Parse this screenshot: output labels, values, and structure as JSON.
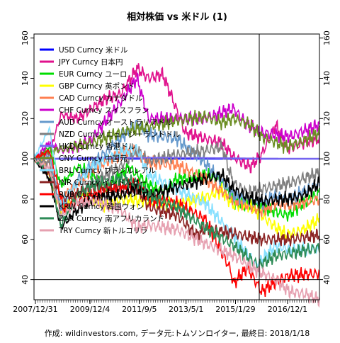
{
  "chart_data": {
    "type": "line",
    "title": "相対株価 vs 米ドル (1)",
    "caption": "作成: wildinvestors.com, データ元:トムソンロイター, 最終日: 2018/1/18",
    "xlabel": "",
    "ylabel": "",
    "x_ticks": [
      "2007/12/31",
      "2009/12/4",
      "2011/9/5",
      "2013/5/1",
      "2015/1/29",
      "2016/12/1"
    ],
    "x_tick_years": [
      2008.0,
      2009.93,
      2011.68,
      2013.33,
      2015.08,
      2016.92
    ],
    "x_range": [
      2007.95,
      2018.05
    ],
    "ylim": [
      30,
      162
    ],
    "y_ticks": [
      40,
      60,
      80,
      100,
      120,
      140,
      160
    ],
    "grid": false,
    "legend_position": "top-left",
    "reference_lines": {
      "horizontal_y": 40,
      "vertical_x": 2015.92
    },
    "series": [
      {
        "name": "USD Curncy 米ドル",
        "color": "#0000ff",
        "points": [
          [
            2007.95,
            100
          ],
          [
            2018.05,
            100
          ]
        ]
      },
      {
        "name": "JPY Curncy 日本円",
        "color": "#e0118c",
        "points": [
          [
            2007.95,
            100
          ],
          [
            2008.5,
            103
          ],
          [
            2008.9,
            122
          ],
          [
            2009.5,
            120
          ],
          [
            2010,
            125
          ],
          [
            2010.5,
            130
          ],
          [
            2011,
            132
          ],
          [
            2011.6,
            145
          ],
          [
            2012,
            140
          ],
          [
            2012.5,
            142
          ],
          [
            2012.9,
            128
          ],
          [
            2013.3,
            113
          ],
          [
            2014,
            110
          ],
          [
            2014.6,
            108
          ],
          [
            2015,
            101
          ],
          [
            2015.6,
            96
          ],
          [
            2016,
            102
          ],
          [
            2016.5,
            117
          ],
          [
            2016.9,
            105
          ],
          [
            2017.5,
            108
          ],
          [
            2018.05,
            110
          ]
        ]
      },
      {
        "name": "EUR Curncy ユーロ",
        "color": "#00dd00",
        "points": [
          [
            2007.95,
            100
          ],
          [
            2008.5,
            106
          ],
          [
            2008.9,
            87
          ],
          [
            2009.5,
            96
          ],
          [
            2010,
            93
          ],
          [
            2010.5,
            85
          ],
          [
            2011,
            92
          ],
          [
            2011.3,
            96
          ],
          [
            2012,
            87
          ],
          [
            2012.5,
            84
          ],
          [
            2013,
            90
          ],
          [
            2014,
            92
          ],
          [
            2014.5,
            90
          ],
          [
            2015,
            79
          ],
          [
            2015.5,
            77
          ],
          [
            2016,
            76
          ],
          [
            2016.9,
            72
          ],
          [
            2017.5,
            78
          ],
          [
            2018.05,
            83
          ]
        ]
      },
      {
        "name": "GBP Curncy 英ポンド",
        "color": "#ffff00",
        "points": [
          [
            2007.95,
            100
          ],
          [
            2008.3,
            99
          ],
          [
            2008.9,
            74
          ],
          [
            2009.5,
            82
          ],
          [
            2010,
            80
          ],
          [
            2010.5,
            77
          ],
          [
            2011,
            80
          ],
          [
            2012,
            79
          ],
          [
            2013,
            77
          ],
          [
            2014,
            81
          ],
          [
            2014.6,
            84
          ],
          [
            2015,
            77
          ],
          [
            2015.6,
            77
          ],
          [
            2016,
            72
          ],
          [
            2016.5,
            66
          ],
          [
            2016.9,
            62
          ],
          [
            2017.5,
            65
          ],
          [
            2018.05,
            70
          ]
        ]
      },
      {
        "name": "CAD Curncy カナダドル",
        "color": "#ff7f50",
        "points": [
          [
            2007.95,
            100
          ],
          [
            2008.5,
            98
          ],
          [
            2008.9,
            80
          ],
          [
            2009.5,
            88
          ],
          [
            2010,
            95
          ],
          [
            2011,
            102
          ],
          [
            2011.5,
            104
          ],
          [
            2012,
            98
          ],
          [
            2013,
            97
          ],
          [
            2014,
            90
          ],
          [
            2015,
            80
          ],
          [
            2016,
            74
          ],
          [
            2016.5,
            78
          ],
          [
            2017,
            77
          ],
          [
            2018.05,
            80
          ]
        ]
      },
      {
        "name": "CHF Curncy スイスフラン",
        "color": "#cc00cc",
        "points": [
          [
            2007.95,
            100
          ],
          [
            2008.5,
            108
          ],
          [
            2008.9,
            104
          ],
          [
            2009.5,
            106
          ],
          [
            2010,
            110
          ],
          [
            2011,
            128
          ],
          [
            2011.6,
            140
          ],
          [
            2012,
            120
          ],
          [
            2013,
            120
          ],
          [
            2014,
            120
          ],
          [
            2015,
            125
          ],
          [
            2015.5,
            117
          ],
          [
            2016,
            113
          ],
          [
            2016.5,
            112
          ],
          [
            2017,
            111
          ],
          [
            2018.05,
            117
          ]
        ]
      },
      {
        "name": "AUD Curncy オーストラリアドル",
        "color": "#6699cc",
        "points": [
          [
            2007.95,
            100
          ],
          [
            2008.5,
            102
          ],
          [
            2008.9,
            75
          ],
          [
            2009.5,
            90
          ],
          [
            2010,
            97
          ],
          [
            2011,
            110
          ],
          [
            2011.6,
            118
          ],
          [
            2012,
            112
          ],
          [
            2013,
            110
          ],
          [
            2014,
            98
          ],
          [
            2015,
            82
          ],
          [
            2016,
            78
          ],
          [
            2016.5,
            82
          ],
          [
            2017,
            80
          ],
          [
            2018.05,
            88
          ]
        ]
      },
      {
        "name": "NZD Curncy ニュージーランドドル",
        "color": "#7f7f7f",
        "points": [
          [
            2007.95,
            100
          ],
          [
            2008.5,
            98
          ],
          [
            2008.9,
            72
          ],
          [
            2009.5,
            82
          ],
          [
            2010,
            88
          ],
          [
            2011,
            96
          ],
          [
            2011.6,
            104
          ],
          [
            2012,
            99
          ],
          [
            2013,
            102
          ],
          [
            2014,
            104
          ],
          [
            2014.6,
            106
          ],
          [
            2015,
            88
          ],
          [
            2015.5,
            83
          ],
          [
            2016,
            85
          ],
          [
            2017,
            88
          ],
          [
            2018.05,
            93
          ]
        ]
      },
      {
        "name": "HKD Curncy 香港ドル",
        "color": "#7b68ee",
        "points": [
          [
            2007.95,
            100
          ],
          [
            2010,
            100.5
          ],
          [
            2013,
            100.6
          ],
          [
            2016,
            100.2
          ],
          [
            2018.05,
            100.1
          ]
        ]
      },
      {
        "name": "CNY Curncy 中国元",
        "color": "#6b8e23",
        "points": [
          [
            2007.95,
            100
          ],
          [
            2008.5,
            104
          ],
          [
            2009,
            105
          ],
          [
            2010,
            108
          ],
          [
            2011,
            113
          ],
          [
            2012,
            116
          ],
          [
            2013,
            119
          ],
          [
            2014,
            121
          ],
          [
            2014.6,
            118
          ],
          [
            2015,
            120
          ],
          [
            2015.6,
            117
          ],
          [
            2016,
            111
          ],
          [
            2016.9,
            106
          ],
          [
            2017.5,
            109
          ],
          [
            2018.05,
            113
          ]
        ]
      },
      {
        "name": "BRL Curncy ブラジルレアル",
        "color": "#87e0ff",
        "points": [
          [
            2007.95,
            100
          ],
          [
            2008.5,
            115
          ],
          [
            2008.9,
            78
          ],
          [
            2009.5,
            88
          ],
          [
            2010,
            96
          ],
          [
            2011,
            103
          ],
          [
            2011.6,
            105
          ],
          [
            2012,
            92
          ],
          [
            2013,
            85
          ],
          [
            2014,
            78
          ],
          [
            2015,
            62
          ],
          [
            2015.8,
            47
          ],
          [
            2016.5,
            57
          ],
          [
            2017,
            55
          ],
          [
            2018.05,
            55
          ]
        ]
      },
      {
        "name": "INR Curncy インドルピー",
        "color": "#8b2323",
        "points": [
          [
            2007.95,
            100
          ],
          [
            2008.5,
            92
          ],
          [
            2009,
            80
          ],
          [
            2010,
            86
          ],
          [
            2011,
            85
          ],
          [
            2011.6,
            86
          ],
          [
            2012,
            76
          ],
          [
            2013,
            72
          ],
          [
            2013.7,
            62
          ],
          [
            2014,
            65
          ],
          [
            2015,
            63
          ],
          [
            2016,
            60
          ],
          [
            2017,
            60
          ],
          [
            2018.05,
            62
          ]
        ]
      },
      {
        "name": "RUB Curncy ロシアルーブル",
        "color": "#ff0000",
        "points": [
          [
            2007.95,
            100
          ],
          [
            2008.5,
            104
          ],
          [
            2009,
            75
          ],
          [
            2010,
            82
          ],
          [
            2011,
            86
          ],
          [
            2011.6,
            88
          ],
          [
            2012,
            80
          ],
          [
            2013,
            78
          ],
          [
            2014,
            70
          ],
          [
            2014.9,
            45
          ],
          [
            2015,
            38
          ],
          [
            2015.5,
            46
          ],
          [
            2016,
            34
          ],
          [
            2016.5,
            39
          ],
          [
            2017,
            42
          ],
          [
            2018.05,
            43
          ]
        ]
      },
      {
        "name": "KRW Curncy 韓国ウォン",
        "color": "#000000",
        "points": [
          [
            2007.95,
            100
          ],
          [
            2008.5,
            90
          ],
          [
            2008.9,
            66
          ],
          [
            2009.5,
            75
          ],
          [
            2010,
            80
          ],
          [
            2011,
            82
          ],
          [
            2011.6,
            86
          ],
          [
            2012,
            82
          ],
          [
            2013,
            86
          ],
          [
            2014,
            90
          ],
          [
            2014.6,
            92
          ],
          [
            2015,
            85
          ],
          [
            2015.5,
            81
          ],
          [
            2016,
            79
          ],
          [
            2016.9,
            80
          ],
          [
            2017.5,
            82
          ],
          [
            2018.05,
            88
          ]
        ]
      },
      {
        "name": "ZAR Curncy 南アフリカランド",
        "color": "#2e8b57",
        "points": [
          [
            2007.95,
            100
          ],
          [
            2008.5,
            94
          ],
          [
            2008.9,
            67
          ],
          [
            2009.5,
            82
          ],
          [
            2010,
            87
          ],
          [
            2011,
            90
          ],
          [
            2011.6,
            88
          ],
          [
            2012,
            82
          ],
          [
            2013,
            76
          ],
          [
            2014,
            66
          ],
          [
            2015,
            57
          ],
          [
            2015.9,
            47
          ],
          [
            2016.5,
            52
          ],
          [
            2017,
            53
          ],
          [
            2018.05,
            56
          ]
        ]
      },
      {
        "name": "TRY Curncy 新トルコリラ",
        "color": "#e6a0b0",
        "points": [
          [
            2007.95,
            100
          ],
          [
            2008.5,
            95
          ],
          [
            2008.9,
            72
          ],
          [
            2009.5,
            78
          ],
          [
            2010,
            79
          ],
          [
            2011,
            75
          ],
          [
            2011.6,
            66
          ],
          [
            2012,
            67
          ],
          [
            2013,
            65
          ],
          [
            2014,
            58
          ],
          [
            2015,
            52
          ],
          [
            2015.9,
            44
          ],
          [
            2016.5,
            40
          ],
          [
            2017,
            34
          ],
          [
            2017.5,
            33
          ],
          [
            2018.05,
            30
          ]
        ]
      }
    ]
  }
}
